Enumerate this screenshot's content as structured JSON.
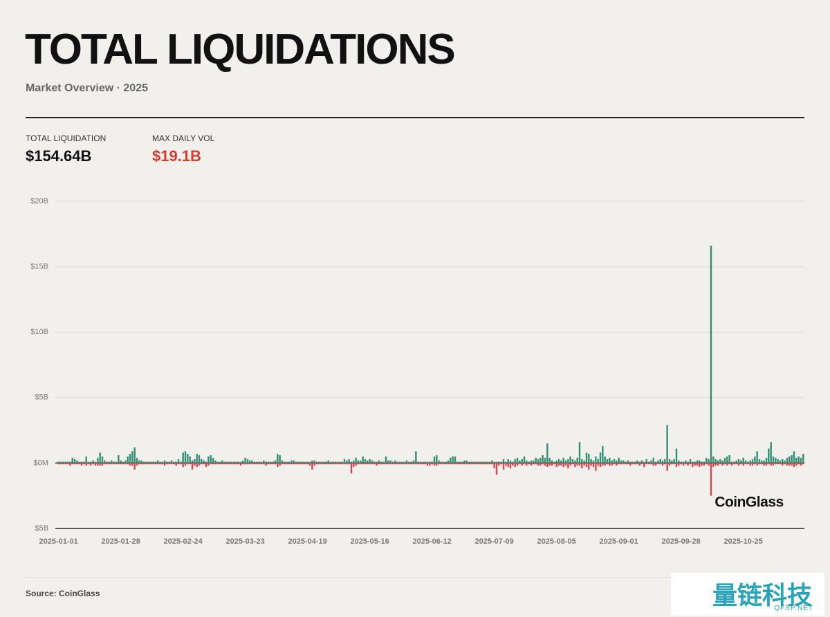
{
  "header": {
    "title": "TOTAL LIQUIDATIONS",
    "subtitle": "Market Overview · 2025"
  },
  "stats": [
    {
      "label": "TOTAL LIQUIDATION",
      "value": "$154.64B"
    },
    {
      "label": "MAX DAILY VOL",
      "value": "$19.1B"
    }
  ],
  "chart_data": {
    "type": "bar",
    "stacked": "diverging",
    "grid": true,
    "brand": "CoinGlass",
    "ylim": [
      -5,
      20
    ],
    "yticks": [
      {
        "value": -5,
        "label": "$5B"
      },
      {
        "value": 0,
        "label": "$0M"
      },
      {
        "value": 5,
        "label": "$5B"
      },
      {
        "value": 10,
        "label": "$10B"
      },
      {
        "value": 15,
        "label": "$15B"
      },
      {
        "value": 20,
        "label": "$20B"
      }
    ],
    "categories": [
      "2025-01-01",
      null,
      null,
      null,
      null,
      null,
      null,
      null,
      null,
      null,
      null,
      null,
      null,
      null,
      null,
      null,
      null,
      null,
      null,
      null,
      null,
      null,
      null,
      null,
      null,
      null,
      null,
      "2025-01-28",
      null,
      null,
      null,
      null,
      null,
      null,
      null,
      null,
      null,
      null,
      null,
      null,
      null,
      null,
      null,
      null,
      null,
      null,
      null,
      null,
      null,
      null,
      null,
      null,
      null,
      null,
      "2025-02-24",
      null,
      null,
      null,
      null,
      null,
      null,
      null,
      null,
      null,
      null,
      null,
      null,
      null,
      null,
      null,
      null,
      null,
      null,
      null,
      null,
      null,
      null,
      null,
      null,
      null,
      null,
      "2025-03-23",
      null,
      null,
      null,
      null,
      null,
      null,
      null,
      null,
      null,
      null,
      null,
      null,
      null,
      null,
      null,
      null,
      null,
      null,
      null,
      null,
      null,
      null,
      null,
      null,
      null,
      null,
      "2025-04-19",
      null,
      null,
      null,
      null,
      null,
      null,
      null,
      null,
      null,
      null,
      null,
      null,
      null,
      null,
      null,
      null,
      null,
      null,
      null,
      null,
      null,
      null,
      null,
      null,
      null,
      null,
      "2025-05-16",
      null,
      null,
      null,
      null,
      null,
      null,
      null,
      null,
      null,
      null,
      null,
      null,
      null,
      null,
      null,
      null,
      null,
      null,
      null,
      null,
      null,
      null,
      null,
      null,
      null,
      null,
      "2025-06-12",
      null,
      null,
      null,
      null,
      null,
      null,
      null,
      null,
      null,
      null,
      null,
      null,
      null,
      null,
      null,
      null,
      null,
      null,
      null,
      null,
      null,
      null,
      null,
      null,
      null,
      null,
      "2025-07-09",
      null,
      null,
      null,
      null,
      null,
      null,
      null,
      null,
      null,
      null,
      null,
      null,
      null,
      null,
      null,
      null,
      null,
      null,
      null,
      null,
      null,
      null,
      null,
      null,
      null,
      null,
      "2025-08-05",
      null,
      null,
      null,
      null,
      null,
      null,
      null,
      null,
      null,
      null,
      null,
      null,
      null,
      null,
      null,
      null,
      null,
      null,
      null,
      null,
      null,
      null,
      null,
      null,
      null,
      null,
      "2025-09-01",
      null,
      null,
      null,
      null,
      null,
      null,
      null,
      null,
      null,
      null,
      null,
      null,
      null,
      null,
      null,
      null,
      null,
      null,
      null,
      null,
      null,
      null,
      null,
      null,
      null,
      null,
      "2025-09-28",
      null,
      null,
      null,
      null,
      null,
      null,
      null,
      null,
      null,
      null,
      null,
      null,
      null,
      null,
      null,
      null,
      null,
      null,
      null,
      null,
      null,
      null,
      null,
      null,
      null,
      null,
      "2025-10-25",
      null,
      null,
      null,
      null,
      null,
      null,
      null,
      null,
      null,
      null,
      null,
      null,
      null,
      null,
      null,
      null,
      null,
      null,
      null,
      null,
      null,
      null,
      null,
      null,
      null,
      null
    ],
    "series": [
      {
        "color": "#2f8f74",
        "values": [
          0.1,
          0.1,
          0.1,
          0.1,
          0.1,
          0.1,
          0.4,
          0.3,
          0.2,
          0.1,
          0.1,
          0.1,
          0.5,
          0.1,
          0.1,
          0.2,
          0.1,
          0.4,
          0.8,
          0.5,
          0.2,
          0.1,
          0.1,
          0.2,
          0.1,
          0.1,
          0.6,
          0.2,
          0.1,
          0.2,
          0.5,
          0.7,
          0.9,
          1.2,
          0.4,
          0.2,
          0.2,
          0.1,
          0.1,
          0.1,
          0.1,
          0.1,
          0.1,
          0.2,
          0.1,
          0.1,
          0.2,
          0.1,
          0.1,
          0.2,
          0.1,
          0.1,
          0.3,
          0.1,
          0.8,
          0.9,
          0.7,
          0.5,
          0.2,
          0.3,
          0.7,
          0.6,
          0.3,
          0.2,
          0.1,
          0.5,
          0.6,
          0.4,
          0.2,
          0.1,
          0.1,
          0.2,
          0.1,
          0.1,
          0.1,
          0.1,
          0.1,
          0.1,
          0.1,
          0.1,
          0.2,
          0.4,
          0.3,
          0.2,
          0.2,
          0.1,
          0.1,
          0.1,
          0.1,
          0.2,
          0.1,
          0.1,
          0.1,
          0.1,
          0.2,
          0.7,
          0.6,
          0.2,
          0.1,
          0.1,
          0.1,
          0.2,
          0.2,
          0.1,
          0.1,
          0.1,
          0.1,
          0.1,
          0.1,
          0.1,
          0.2,
          0.2,
          0.1,
          0.1,
          0.1,
          0.1,
          0.1,
          0.2,
          0.1,
          0.1,
          0.1,
          0.1,
          0.1,
          0.1,
          0.3,
          0.2,
          0.3,
          0.1,
          0.2,
          0.4,
          0.2,
          0.2,
          0.5,
          0.3,
          0.2,
          0.3,
          0.2,
          0.1,
          0.1,
          0.2,
          0.1,
          0.1,
          0.5,
          0.2,
          0.2,
          0.1,
          0.2,
          0.1,
          0.1,
          0.1,
          0.1,
          0.2,
          0.1,
          0.1,
          0.2,
          0.9,
          0.1,
          0.1,
          0.1,
          0.1,
          0.1,
          0.1,
          0.1,
          0.5,
          0.6,
          0.2,
          0.1,
          0.1,
          0.1,
          0.2,
          0.4,
          0.5,
          0.5,
          0.1,
          0.1,
          0.1,
          0.2,
          0.2,
          0.1,
          0.1,
          0.1,
          0.1,
          0.1,
          0.1,
          0.1,
          0.1,
          0.1,
          0.1,
          0.2,
          0.1,
          0.1,
          0.1,
          0.1,
          0.3,
          0.1,
          0.3,
          0.2,
          0.1,
          0.3,
          0.4,
          0.2,
          0.3,
          0.5,
          0.2,
          0.1,
          0.2,
          0.2,
          0.4,
          0.3,
          0.4,
          0.6,
          0.4,
          1.5,
          0.4,
          0.2,
          0.1,
          0.2,
          0.3,
          0.2,
          0.4,
          0.2,
          0.3,
          0.5,
          0.3,
          0.2,
          0.4,
          1.6,
          0.3,
          0.2,
          0.8,
          0.7,
          0.3,
          0.2,
          0.5,
          0.3,
          0.8,
          1.3,
          0.5,
          0.3,
          0.4,
          0.2,
          0.3,
          0.2,
          0.4,
          0.2,
          0.2,
          0.1,
          0.2,
          0.1,
          0.1,
          0.1,
          0.2,
          0.1,
          0.2,
          0.1,
          0.3,
          0.1,
          0.2,
          0.4,
          0.1,
          0.2,
          0.3,
          0.2,
          0.3,
          2.9,
          0.3,
          0.2,
          0.3,
          1.1,
          0.2,
          0.1,
          0.1,
          0.2,
          0.1,
          0.3,
          0.1,
          0.1,
          0.2,
          0.2,
          0.1,
          0.1,
          0.4,
          0.3,
          16.6,
          0.5,
          0.3,
          0.2,
          0.3,
          0.2,
          0.4,
          0.5,
          0.6,
          0.1,
          0.1,
          0.2,
          0.3,
          0.2,
          0.4,
          0.2,
          0.1,
          0.2,
          0.3,
          0.5,
          0.9,
          0.3,
          0.2,
          0.2,
          0.4,
          1.1,
          1.6,
          0.5,
          0.4,
          0.3,
          0.2,
          0.3,
          0.2,
          0.4,
          0.5,
          0.6,
          0.9,
          0.4,
          0.5,
          0.4,
          0.7
        ]
      },
      {
        "color": "#d9454b",
        "values": [
          -0.1,
          -0.1,
          -0.1,
          -0.1,
          -0.1,
          -0.2,
          -0.1,
          -0.1,
          -0.1,
          -0.1,
          -0.2,
          -0.1,
          -0.2,
          -0.1,
          -0.2,
          -0.1,
          -0.2,
          -0.2,
          -0.2,
          -0.2,
          -0.1,
          -0.1,
          -0.1,
          -0.1,
          -0.1,
          -0.1,
          -0.1,
          -0.1,
          -0.1,
          -0.1,
          -0.1,
          -0.2,
          -0.2,
          -0.5,
          -0.2,
          -0.1,
          -0.1,
          -0.1,
          -0.1,
          -0.1,
          -0.1,
          -0.1,
          -0.1,
          -0.1,
          -0.1,
          -0.1,
          -0.2,
          -0.1,
          -0.1,
          -0.1,
          -0.1,
          -0.2,
          -0.1,
          -0.1,
          -0.3,
          -0.2,
          -0.1,
          -0.1,
          -0.5,
          -0.2,
          -0.3,
          -0.2,
          -0.1,
          -0.1,
          -0.3,
          -0.2,
          -0.1,
          -0.1,
          -0.1,
          -0.1,
          -0.1,
          -0.1,
          -0.1,
          -0.1,
          -0.1,
          -0.1,
          -0.1,
          -0.1,
          -0.1,
          -0.2,
          -0.1,
          -0.1,
          -0.1,
          -0.1,
          -0.1,
          -0.1,
          -0.1,
          -0.1,
          -0.1,
          -0.1,
          -0.2,
          -0.1,
          -0.1,
          -0.1,
          -0.1,
          -0.3,
          -0.2,
          -0.1,
          -0.1,
          -0.1,
          -0.1,
          -0.1,
          -0.1,
          -0.1,
          -0.1,
          -0.1,
          -0.1,
          -0.1,
          -0.1,
          -0.2,
          -0.5,
          -0.2,
          -0.1,
          -0.1,
          -0.1,
          -0.1,
          -0.1,
          -0.1,
          -0.1,
          -0.1,
          -0.1,
          -0.1,
          -0.1,
          -0.1,
          -0.1,
          -0.1,
          -0.1,
          -0.8,
          -0.3,
          -0.2,
          -0.1,
          -0.1,
          -0.1,
          -0.1,
          -0.1,
          -0.1,
          -0.1,
          -0.1,
          -0.2,
          -0.1,
          -0.1,
          -0.1,
          -0.1,
          -0.1,
          -0.1,
          -0.1,
          -0.1,
          -0.1,
          -0.1,
          -0.1,
          -0.1,
          -0.1,
          -0.1,
          -0.1,
          -0.1,
          -0.1,
          -0.1,
          -0.1,
          -0.1,
          -0.1,
          -0.2,
          -0.2,
          -0.1,
          -0.2,
          -0.2,
          -0.1,
          -0.1,
          -0.1,
          -0.1,
          -0.1,
          -0.1,
          -0.1,
          -0.1,
          -0.1,
          -0.1,
          -0.1,
          -0.1,
          -0.1,
          -0.1,
          -0.1,
          -0.1,
          -0.1,
          -0.1,
          -0.1,
          -0.1,
          -0.1,
          -0.1,
          -0.1,
          -0.1,
          -0.4,
          -0.9,
          -0.2,
          -0.1,
          -0.5,
          -0.2,
          -0.3,
          -0.4,
          -0.2,
          -0.3,
          -0.2,
          -0.1,
          -0.2,
          -0.1,
          -0.2,
          -0.1,
          -0.2,
          -0.1,
          -0.1,
          -0.2,
          -0.2,
          -0.1,
          -0.2,
          -0.3,
          -0.2,
          -0.2,
          -0.1,
          -0.3,
          -0.2,
          -0.2,
          -0.3,
          -0.2,
          -0.4,
          -0.2,
          -0.1,
          -0.3,
          -0.2,
          -0.2,
          -0.4,
          -0.2,
          -0.3,
          -0.5,
          -0.2,
          -0.3,
          -0.6,
          -0.2,
          -0.3,
          -0.2,
          -0.2,
          -0.1,
          -0.2,
          -0.2,
          -0.1,
          -0.2,
          -0.1,
          -0.1,
          -0.1,
          -0.1,
          -0.1,
          -0.2,
          -0.1,
          -0.1,
          -0.1,
          -0.2,
          -0.1,
          -0.3,
          -0.1,
          -0.1,
          -0.1,
          -0.2,
          -0.2,
          -0.1,
          -0.1,
          -0.2,
          -0.1,
          -0.6,
          -0.2,
          -0.1,
          -0.1,
          -0.3,
          -0.2,
          -0.1,
          -0.2,
          -0.1,
          -0.2,
          -0.1,
          -0.3,
          -0.2,
          -0.2,
          -0.3,
          -0.2,
          -0.2,
          -0.1,
          -0.2,
          -2.5,
          -0.3,
          -0.2,
          -0.2,
          -0.1,
          -0.2,
          -0.1,
          -0.2,
          -0.1,
          -0.2,
          -0.1,
          -0.1,
          -0.2,
          -0.1,
          -0.2,
          -0.1,
          -0.1,
          -0.2,
          -0.2,
          -0.1,
          -0.2,
          -0.1,
          -0.1,
          -0.2,
          -0.2,
          -0.1,
          -0.2,
          -0.2,
          -0.1,
          -0.1,
          -0.1,
          -0.2,
          -0.1,
          -0.2,
          -0.2,
          -0.2,
          -0.3,
          -0.2,
          -0.1,
          -0.2,
          -0.1
        ]
      }
    ]
  },
  "footer": {
    "source": "Source: CoinGlass"
  },
  "watermark": {
    "cn": "量链科技",
    "en": "QFSP.NET"
  }
}
